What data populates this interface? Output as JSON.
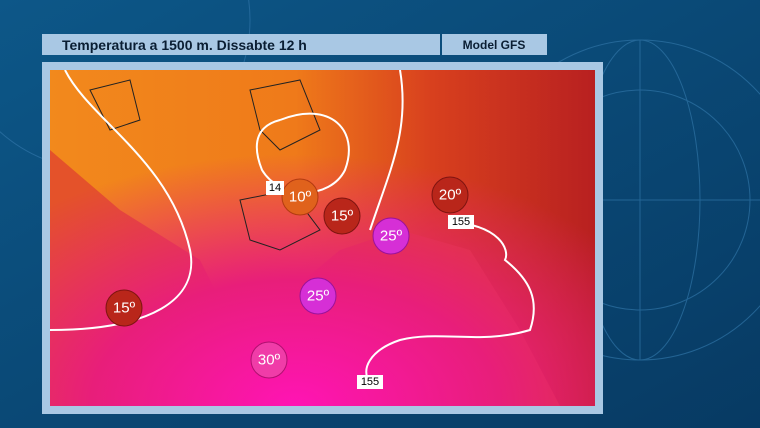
{
  "header": {
    "title": "Temperatura a 1500 m.  Dissabte 12 h",
    "model": "Model GFS"
  },
  "map": {
    "temperature_labels": [
      "10º",
      "15º",
      "20º",
      "25º",
      "25º",
      "15º",
      "30º"
    ],
    "contour_labels": [
      "155",
      "155",
      "14"
    ]
  }
}
